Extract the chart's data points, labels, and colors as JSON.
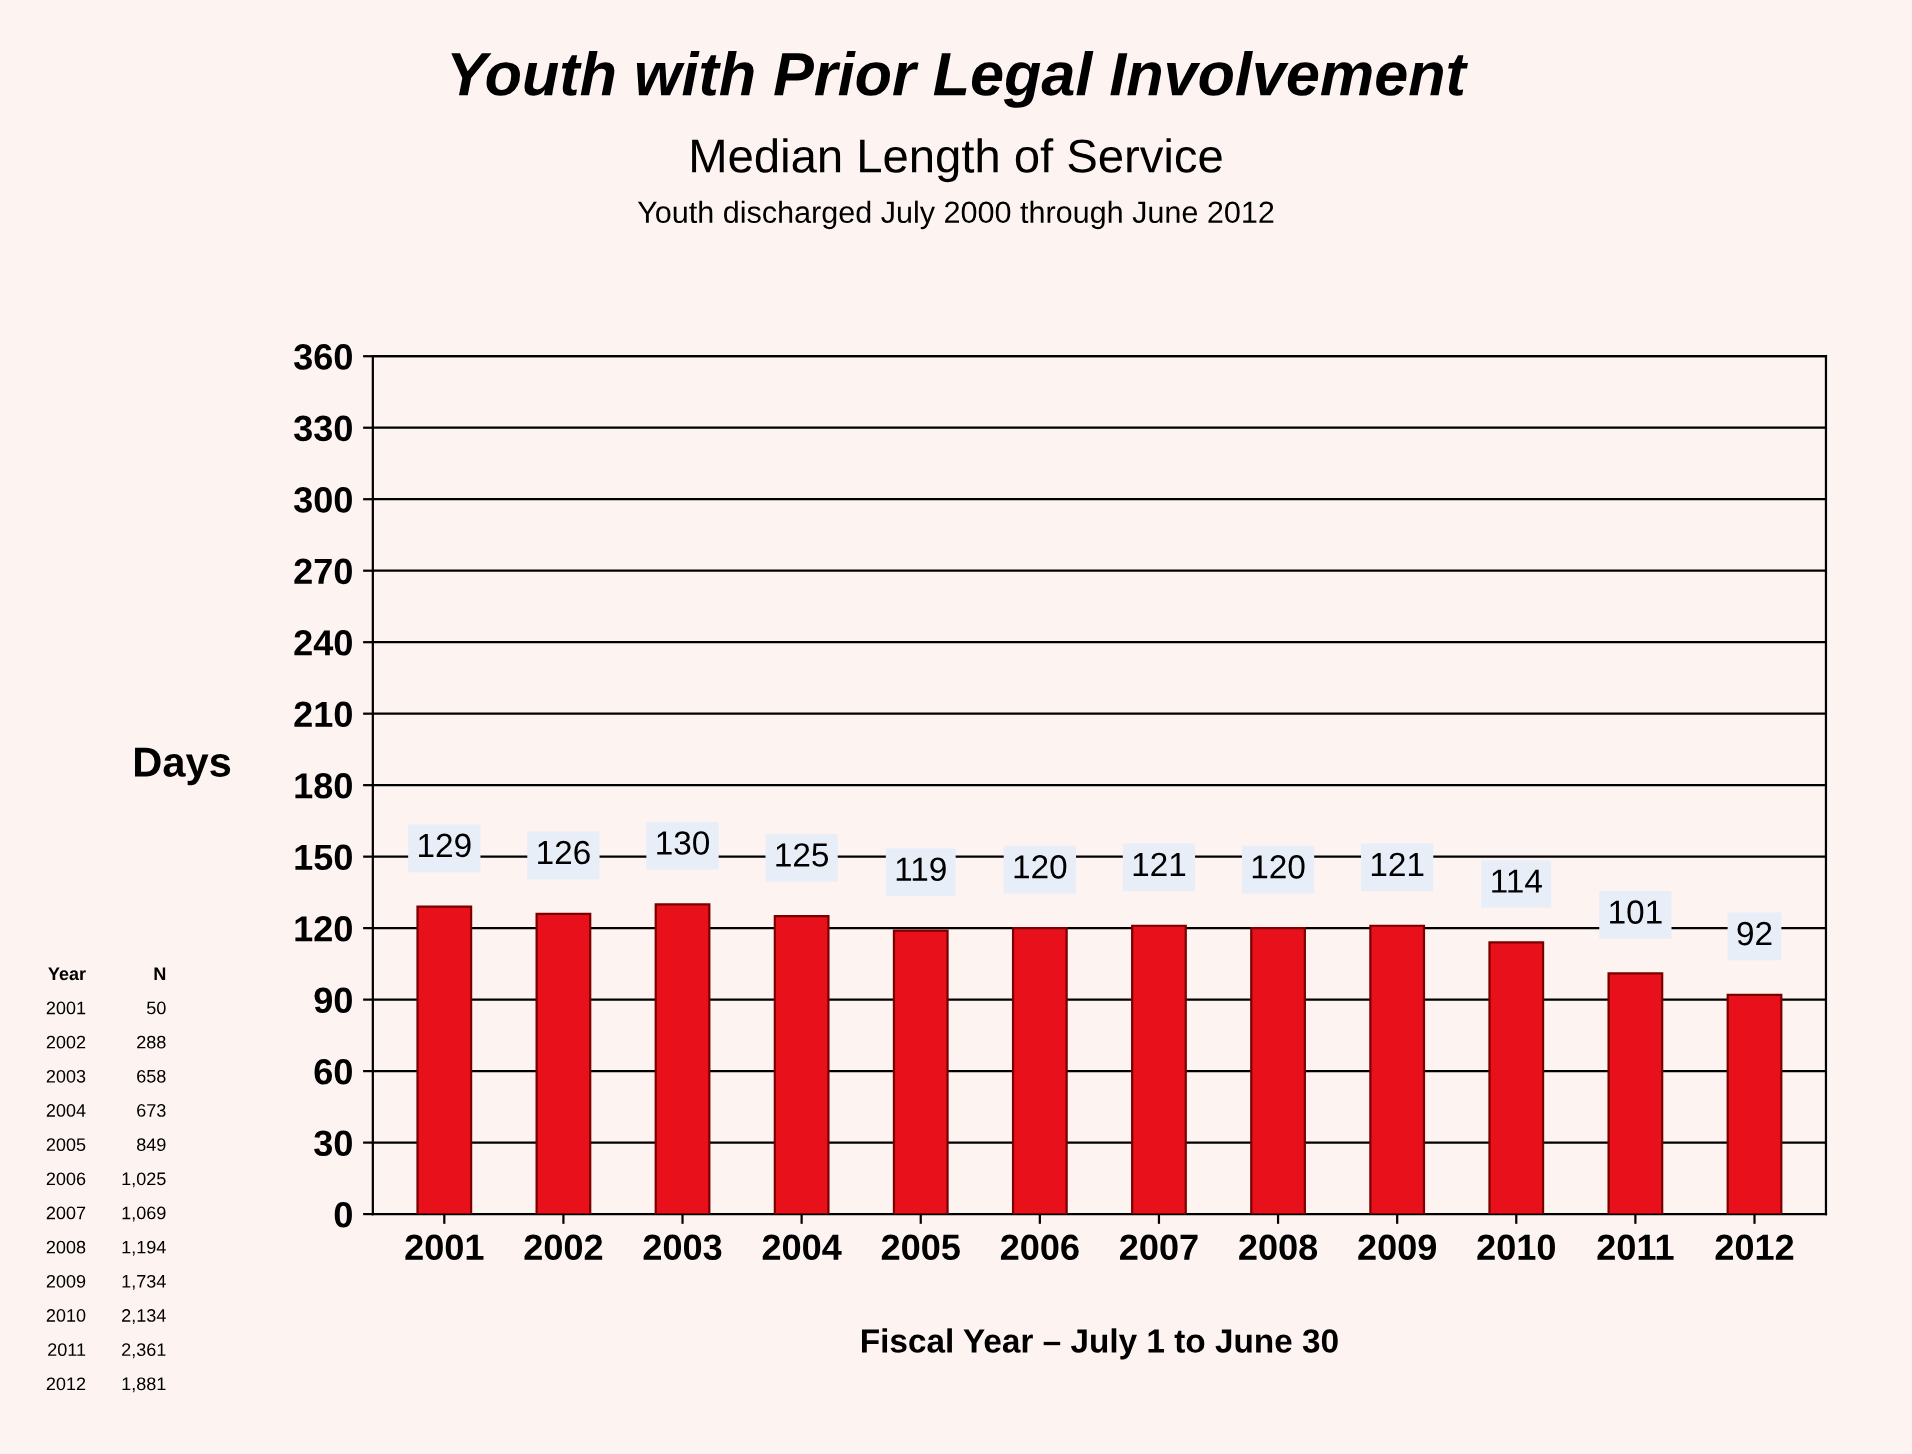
{
  "chart_data": {
    "type": "bar",
    "title": "Youth with Prior Legal Involvement",
    "subtitle": "Median Length of Service\nYouth discharged July 2000 through June 2012",
    "xlabel": "Fiscal Year – July 1 to June 30",
    "ylabel": "Days",
    "categories": [
      "2001",
      "2002",
      "2003",
      "2004",
      "2005",
      "2006",
      "2007",
      "2008",
      "2009",
      "2010",
      "2011",
      "2012"
    ],
    "values": [
      129,
      126,
      130,
      125,
      119,
      120,
      121,
      120,
      121,
      114,
      101,
      92
    ],
    "color": "#e8101a",
    "ylim": [
      0,
      360
    ],
    "yticks": [
      0,
      30,
      60,
      90,
      120,
      150,
      180,
      210,
      240,
      270,
      300,
      330,
      360
    ],
    "grid": "y",
    "data_labels": true,
    "annotations": [
      "Year",
      "N",
      "2001",
      "50",
      "2002",
      "288",
      "2003",
      "658",
      "2004",
      "673",
      "2005",
      "849",
      "2006",
      "1,025",
      "2007",
      "1,069",
      "2008",
      "1,194",
      "2009",
      "1,734",
      "2010",
      "2,134",
      "2011",
      "2,361",
      "2012",
      "1,881"
    ]
  }
}
